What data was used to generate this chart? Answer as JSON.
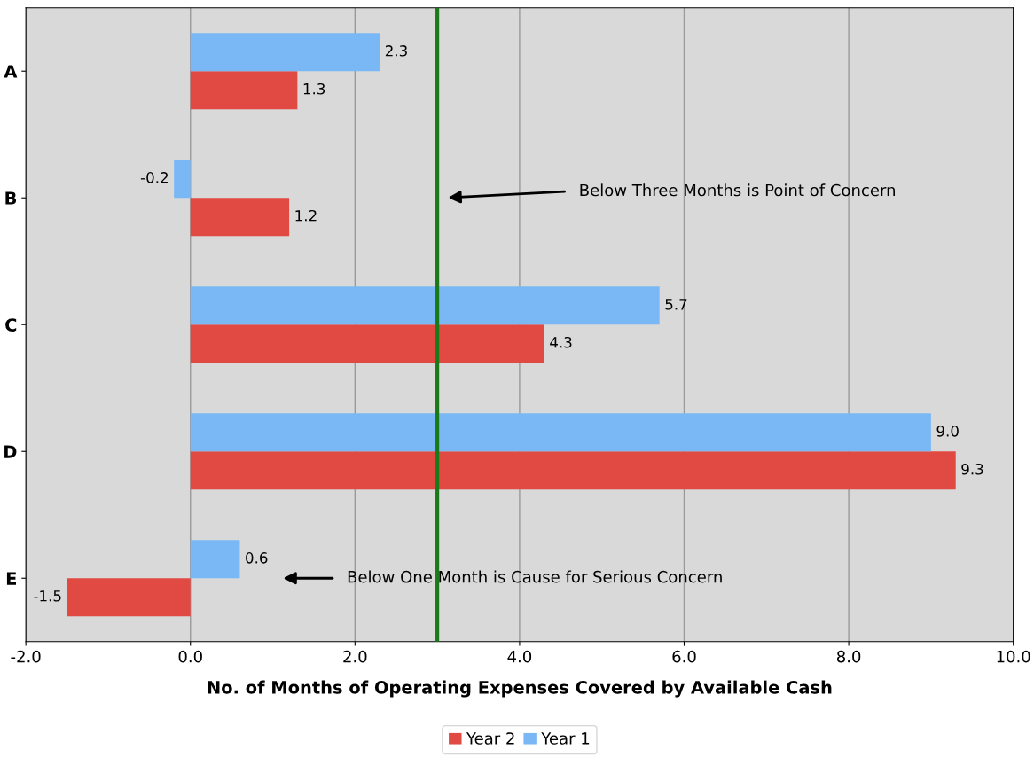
{
  "chart_data": {
    "type": "bar",
    "orientation": "horizontal",
    "categories": [
      "A",
      "B",
      "C",
      "D",
      "E"
    ],
    "series": [
      {
        "name": "Year 2",
        "color": "#e04a43",
        "values": [
          1.3,
          1.2,
          4.3,
          9.3,
          -1.5
        ],
        "value_labels": [
          "1.3",
          "1.2",
          "4.3",
          "9.3",
          "-1.5"
        ]
      },
      {
        "name": "Year 1",
        "color": "#7ab8f5",
        "values": [
          2.3,
          -0.2,
          5.7,
          9.0,
          0.6
        ],
        "value_labels": [
          "2.3",
          "-0.2",
          "5.7",
          "9.0",
          "0.6"
        ]
      }
    ],
    "xlabel": "No. of Months of Operating Expenses Covered by Available Cash",
    "xlim": [
      -2,
      10
    ],
    "xticks": [
      {
        "value": -2,
        "label": "-2.0"
      },
      {
        "value": 0,
        "label": "0.0"
      },
      {
        "value": 2,
        "label": "2.0"
      },
      {
        "value": 4,
        "label": "4.0"
      },
      {
        "value": 6,
        "label": "6.0"
      },
      {
        "value": 8,
        "label": "8.0"
      },
      {
        "value": 10,
        "label": "10.0"
      }
    ],
    "grid": "x",
    "legend": "bottom",
    "ref_lines": [
      {
        "axis": "x",
        "value": 3.0,
        "color": "#1a7a1a"
      }
    ],
    "annotations": [
      "Below Three Months is Point of Concern",
      "Below One Month is Cause for Serious Concern"
    ]
  }
}
